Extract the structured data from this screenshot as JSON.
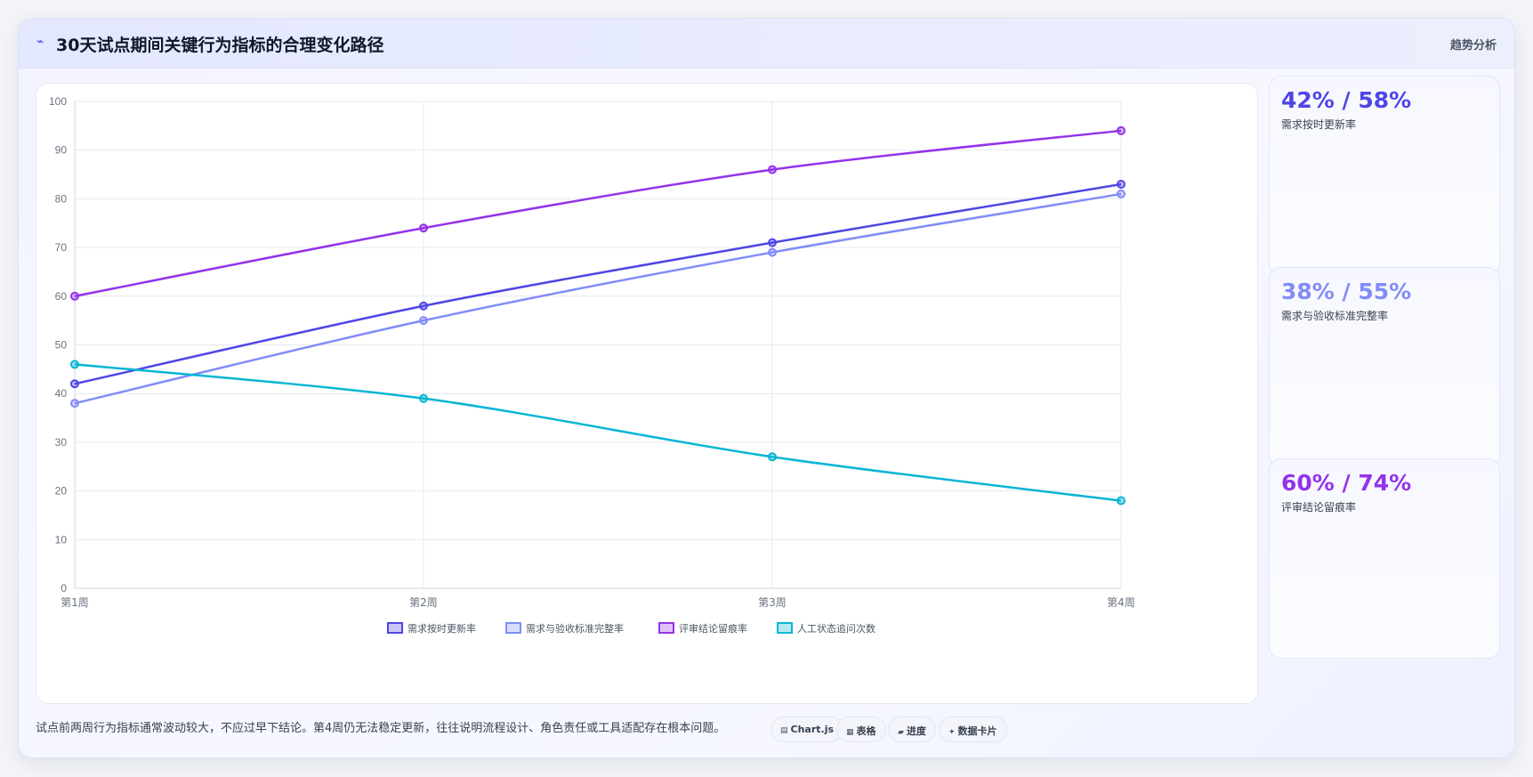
{
  "header": {
    "title_icon": "trend-line-icon",
    "title": "30天试点期间关键行为指标的合理变化路径",
    "tag": "趋势分析"
  },
  "chart_data": {
    "type": "line",
    "categories": [
      "第1周",
      "第2周",
      "第3周",
      "第4周"
    ],
    "ylim": [
      0,
      100
    ],
    "yticks": [
      0,
      10,
      20,
      30,
      40,
      50,
      60,
      70,
      80,
      90,
      100
    ],
    "grid": true,
    "legend_position": "bottom",
    "series": [
      {
        "name": "需求按时更新率",
        "values": [
          42,
          58,
          71,
          83
        ],
        "color": "#4f46e5"
      },
      {
        "name": "需求与验收标准完整率",
        "values": [
          38,
          55,
          69,
          81
        ],
        "color": "#818cf8"
      },
      {
        "name": "评审结论留痕率",
        "values": [
          60,
          74,
          86,
          94
        ],
        "color": "#9333ea"
      },
      {
        "name": "人工状态追问次数",
        "values": [
          46,
          39,
          27,
          18
        ],
        "color": "#06b6d4"
      }
    ]
  },
  "stats": [
    {
      "value": "42% / 58%",
      "label": "需求按时更新率",
      "color": "#4f46e5"
    },
    {
      "value": "38% / 55%",
      "label": "需求与验收标准完整率",
      "color": "#818cf8"
    },
    {
      "value": "60% / 74%",
      "label": "评审结论留痕率",
      "color": "#9333ea"
    }
  ],
  "footnote": "试点前两周行为指标通常波动较大，不应过早下结论。第4周仍无法稳定更新，往往说明流程设计、角色责任或工具适配存在根本问题。",
  "chips": [
    {
      "icon": "▤",
      "label": "Chart.js"
    },
    {
      "icon": "▦",
      "label": "表格"
    },
    {
      "icon": "▰",
      "label": "进度"
    },
    {
      "icon": "✦",
      "label": "数据卡片"
    }
  ]
}
